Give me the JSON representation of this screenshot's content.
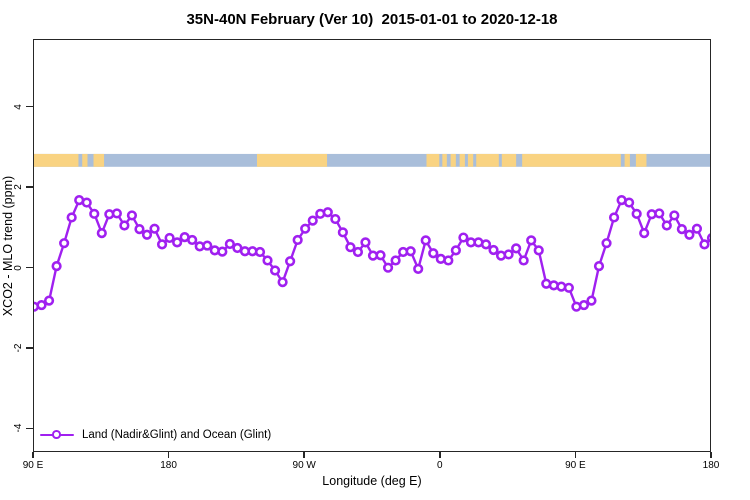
{
  "title": "35N-40N February (Ver 10)  2015-01-01 to 2020-12-18",
  "chart_data": {
    "type": "line",
    "title": "35N-40N February (Ver 10)  2015-01-01 to 2020-12-18",
    "xlabel": "Longitude (deg E)",
    "ylabel": "XCO2 - MLO trend (ppm)",
    "grid": false,
    "xlim": [
      90,
      540
    ],
    "ylim_displayed": [
      -4.6,
      5.7
    ],
    "x_axis_wraps_longitude": true,
    "x_ticks": [
      {
        "pos": 90,
        "label": "90 E"
      },
      {
        "pos": 180,
        "label": "180"
      },
      {
        "pos": 270,
        "label": "90 W"
      },
      {
        "pos": 360,
        "label": "0"
      },
      {
        "pos": 450,
        "label": "90 E"
      },
      {
        "pos": 540,
        "label": "180"
      }
    ],
    "y_ticks": [
      {
        "pos": 4,
        "label": "4"
      },
      {
        "pos": 2,
        "label": "2"
      },
      {
        "pos": 0,
        "label": "0"
      },
      {
        "pos": -2,
        "label": "-2"
      },
      {
        "pos": -4,
        "label": "-4"
      }
    ],
    "colors": {
      "series": "#A020F0",
      "marker_fill": "#FFFFFF",
      "land_band": "#F9D382",
      "ocean_band": "#A9BEDA",
      "axis": "#262626",
      "text": "#000000"
    },
    "legend": {
      "position": "bottom-left",
      "entries": [
        {
          "label": "Land (Nadir&Glint) and Ocean (Glint)",
          "color": "#A020F0",
          "marker": "open-circle-on-line"
        }
      ]
    },
    "map_band": {
      "description": "35N-40N latitude strip of world map drawn across plot",
      "value_top": 2.85,
      "value_bottom": 2.53,
      "base": "ocean",
      "land_segments_lon": [
        [
          90,
          119.5
        ],
        [
          122,
          125.5
        ],
        [
          129.5,
          136.5
        ],
        [
          238,
          284.5
        ],
        [
          350.5,
          359
        ],
        [
          361,
          364
        ],
        [
          366.5,
          370
        ],
        [
          372.5,
          376
        ],
        [
          378,
          381.5
        ],
        [
          383.5,
          398.5
        ],
        [
          400.5,
          410
        ],
        [
          414,
          479.5
        ],
        [
          482,
          485.5
        ],
        [
          489.5,
          496.5
        ]
      ]
    },
    "series": [
      {
        "name": "Land (Nadir&Glint) and Ocean (Glint)",
        "marker": "open-circle",
        "x": [
          90,
          95,
          100,
          105,
          110,
          115,
          120,
          125,
          130,
          135,
          140,
          145,
          150,
          155,
          160,
          165,
          170,
          175,
          180,
          185,
          190,
          195,
          200,
          205,
          210,
          215,
          220,
          225,
          230,
          235,
          240,
          245,
          250,
          255,
          260,
          265,
          270,
          275,
          280,
          285,
          290,
          295,
          300,
          305,
          310,
          315,
          320,
          325,
          330,
          335,
          340,
          345,
          350,
          355,
          360,
          365,
          370,
          375,
          380,
          385,
          390,
          395,
          400,
          405,
          410,
          415,
          420,
          425,
          430,
          435,
          440,
          445,
          450,
          455,
          460,
          465,
          470,
          475,
          480,
          485,
          490,
          495,
          500,
          505,
          510,
          515,
          520,
          525,
          530,
          535,
          540
        ],
        "y": [
          -0.95,
          -0.91,
          -0.8,
          0.06,
          0.63,
          1.27,
          1.7,
          1.64,
          1.36,
          0.88,
          1.35,
          1.37,
          1.07,
          1.32,
          0.98,
          0.84,
          0.99,
          0.6,
          0.76,
          0.65,
          0.78,
          0.71,
          0.55,
          0.57,
          0.45,
          0.42,
          0.61,
          0.51,
          0.43,
          0.43,
          0.41,
          0.2,
          -0.05,
          -0.34,
          0.18,
          0.71,
          0.99,
          1.19,
          1.36,
          1.4,
          1.23,
          0.9,
          0.53,
          0.41,
          0.65,
          0.32,
          0.33,
          0.02,
          0.2,
          0.41,
          0.43,
          -0.01,
          0.7,
          0.38,
          0.24,
          0.2,
          0.45,
          0.77,
          0.65,
          0.65,
          0.6,
          0.46,
          0.32,
          0.35,
          0.5,
          0.2,
          0.7,
          0.45,
          -0.38,
          -0.42,
          -0.45,
          -0.48,
          -0.95,
          -0.91,
          -0.8,
          0.06,
          0.63,
          1.27,
          1.7,
          1.64,
          1.36,
          0.88,
          1.35,
          1.37,
          1.07,
          1.32,
          0.98,
          0.84,
          0.99,
          0.6,
          0.76
        ]
      }
    ]
  }
}
